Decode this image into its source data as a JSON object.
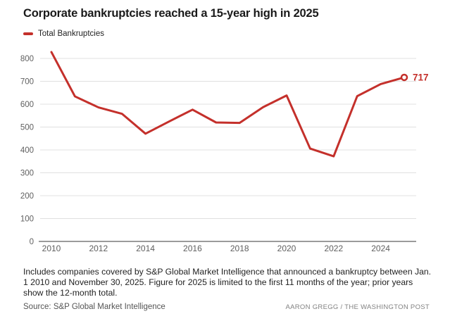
{
  "header": {
    "title": "Corporate bankruptcies reached a 15-year high in 2025"
  },
  "legend": {
    "items": [
      {
        "label": "Total Bankruptcies",
        "color": "#c4302b"
      }
    ]
  },
  "chart_data": {
    "type": "line",
    "title": "Corporate bankruptcies reached a 15-year high in 2025",
    "x": [
      2010,
      2011,
      2012,
      2013,
      2014,
      2015,
      2016,
      2017,
      2018,
      2019,
      2020,
      2021,
      2022,
      2023,
      2024,
      2025
    ],
    "series": [
      {
        "name": "Total Bankruptcies",
        "color": "#c4302b",
        "values": [
          828,
          634,
          586,
          558,
          471,
          524,
          576,
          520,
          518,
          587,
          638,
          406,
          372,
          635,
          688,
          717
        ]
      }
    ],
    "x_ticks": [
      2010,
      2012,
      2014,
      2016,
      2018,
      2020,
      2022,
      2024
    ],
    "y_ticks": [
      0,
      100,
      200,
      300,
      400,
      500,
      600,
      700,
      800
    ],
    "ylim": [
      0,
      800
    ],
    "grid": true,
    "legend_position": "top-left",
    "end_label": "717",
    "end_marker": "open-circle",
    "xlabel": "",
    "ylabel": ""
  },
  "footnote": {
    "text": "Includes companies covered by S&P Global Market Intelligence that announced a bankruptcy between Jan. 1 2010 and November 30, 2025. Figure for 2025 is limited to the first 11 months of the year; prior years show the 12-month total."
  },
  "source": {
    "label": "Source: S&P Global Market Intelligence",
    "credit": "AARON GREGG / THE WASHINGTON POST"
  },
  "colors": {
    "line": "#c4302b",
    "axis_text": "#5f5f5f",
    "grid": "#e0e0e0",
    "axis_line": "#9b9b9b",
    "title": "#1a1a1a"
  }
}
